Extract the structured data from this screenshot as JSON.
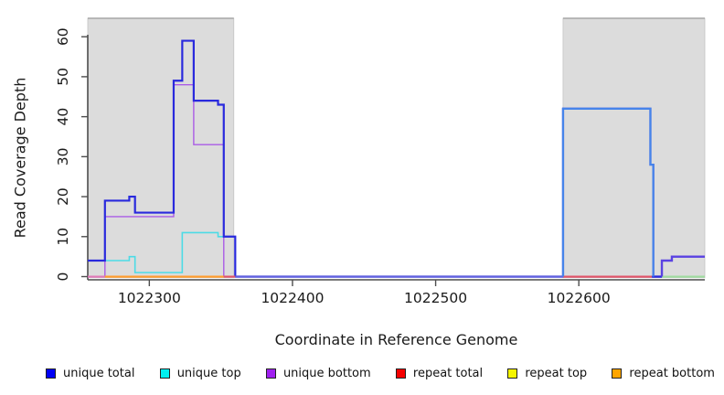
{
  "chart_data": {
    "type": "line",
    "subtype": "step-post",
    "title": "",
    "xlabel": "Coordinate in Reference Genome",
    "ylabel": "Read Coverage Depth",
    "x_ticks": [
      1022300,
      1022400,
      1022500,
      1022600
    ],
    "y_ticks": [
      0,
      10,
      20,
      30,
      40,
      50,
      60
    ],
    "xlim": [
      1022257,
      1022688
    ],
    "ylim": [
      0,
      64
    ],
    "grid": false,
    "legend_position": "bottom",
    "background_color": "#ffffff",
    "shaded_region_color": "#dcdcdc",
    "shaded_region_border_color": "#a6a6a6",
    "axis_color": "#4d4d4d",
    "shaded_regions": [
      {
        "x0": 1022257,
        "x1": 1022359
      },
      {
        "x0": 1022589,
        "x1": 1022688
      }
    ],
    "series": [
      {
        "name": "repeat total",
        "color": "#e0556a",
        "points": [
          [
            1022257,
            0
          ],
          [
            1022688,
            0
          ]
        ]
      },
      {
        "name": "repeat top",
        "color": "#f5f500",
        "points": [
          [
            1022257,
            0
          ],
          [
            1022688,
            0
          ]
        ]
      },
      {
        "name": "repeat bottom",
        "color": "#ff9d2e",
        "points": [
          [
            1022257,
            0
          ],
          [
            1022269,
            0
          ],
          [
            1022352,
            0
          ],
          [
            1022688,
            0
          ]
        ]
      },
      {
        "name": "unique top",
        "color": "#4cdbe6",
        "points": [
          [
            1022257,
            4
          ],
          [
            1022286,
            5
          ],
          [
            1022290,
            1
          ],
          [
            1022323,
            11
          ],
          [
            1022348,
            10
          ],
          [
            1022360,
            0
          ],
          [
            1022589,
            42
          ],
          [
            1022650,
            28
          ],
          [
            1022652,
            0
          ],
          [
            1022688,
            0
          ]
        ]
      },
      {
        "name": "unique bottom",
        "color": "#aa5ce6",
        "points": [
          [
            1022257,
            0
          ],
          [
            1022269,
            15
          ],
          [
            1022317,
            48
          ],
          [
            1022331,
            33
          ],
          [
            1022352,
            0
          ],
          [
            1022658,
            4
          ],
          [
            1022665,
            5
          ],
          [
            1022688,
            5
          ]
        ]
      },
      {
        "name": "unique total",
        "color": "#2929dd",
        "points": [
          [
            1022257,
            4
          ],
          [
            1022269,
            19
          ],
          [
            1022286,
            20
          ],
          [
            1022290,
            16
          ],
          [
            1022317,
            49
          ],
          [
            1022323,
            59
          ],
          [
            1022331,
            44
          ],
          [
            1022348,
            43
          ],
          [
            1022352,
            10
          ],
          [
            1022360,
            0
          ],
          [
            1022589,
            42
          ],
          [
            1022650,
            28
          ],
          [
            1022652,
            0
          ],
          [
            1022658,
            4
          ],
          [
            1022665,
            5
          ],
          [
            1022688,
            5
          ]
        ]
      }
    ],
    "zero_line_visible_segments": [
      {
        "x0": 1022257,
        "x1": 1022269,
        "color": "#e07ab8"
      },
      {
        "x0": 1022269,
        "x1": 1022352,
        "color": "#ff9d2e"
      },
      {
        "x0": 1022352,
        "x1": 1022360,
        "color": "#e0556a"
      },
      {
        "x0": 1022360,
        "x1": 1022589,
        "color": "#6161de"
      },
      {
        "x0": 1022589,
        "x1": 1022651,
        "color": "#e0556a"
      },
      {
        "x0": 1022651,
        "x1": 1022658,
        "color": "#2929dd"
      },
      {
        "x0": 1022658,
        "x1": 1022688,
        "color": "#a0dba0"
      }
    ],
    "total_overlay_segments": [
      {
        "color": "#4684ea",
        "path": [
          [
            1022589,
            0
          ],
          [
            1022589,
            42
          ],
          [
            1022650,
            42
          ],
          [
            1022650,
            28
          ],
          [
            1022652,
            28
          ],
          [
            1022652,
            0
          ]
        ]
      },
      {
        "color": "#5b42e2",
        "path": [
          [
            1022658,
            0
          ],
          [
            1022658,
            4
          ],
          [
            1022665,
            4
          ],
          [
            1022665,
            5
          ],
          [
            1022688,
            5
          ]
        ]
      }
    ]
  },
  "legend": {
    "items": [
      {
        "label": "unique total",
        "color": "#0000f5"
      },
      {
        "label": "unique top",
        "color": "#00f0f0"
      },
      {
        "label": "unique bottom",
        "color": "#a020f0"
      },
      {
        "label": "repeat total",
        "color": "#f50000"
      },
      {
        "label": "repeat top",
        "color": "#f5f500"
      },
      {
        "label": "repeat bottom",
        "color": "#ffa500"
      }
    ]
  }
}
